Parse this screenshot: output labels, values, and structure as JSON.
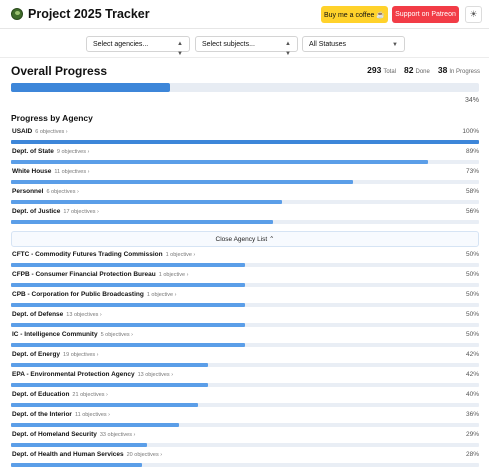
{
  "app": {
    "title": "Project 2025 Tracker",
    "coffee_button": "Buy me a coffee ☕",
    "patreon_button": "Support on Patreon",
    "theme_icon": "sun-icon"
  },
  "filters": {
    "agencies": "Select agencies...",
    "subjects": "Select subjects...",
    "statuses": "All Statuses"
  },
  "overall": {
    "heading": "Overall Progress",
    "total": "293",
    "total_label": "Total",
    "done": "82",
    "done_label": "Done",
    "in_progress": "38",
    "in_progress_label": "In Progress",
    "percent_label": "34%",
    "percent": 34
  },
  "agency_section": {
    "heading": "Progress by Agency",
    "close_label": "Close Agency List ⌃"
  },
  "colors": {
    "primary": "#3d86d9",
    "light": "#5b9ee8",
    "track": "#e9eef5"
  },
  "agencies": [
    {
      "name": "USAID",
      "objectives": "6 objectives ›",
      "percent_label": "100%",
      "percent": 100
    },
    {
      "name": "Dept. of State",
      "objectives": "9 objectives ›",
      "percent_label": "89%",
      "percent": 89
    },
    {
      "name": "White House",
      "objectives": "11 objectives ›",
      "percent_label": "73%",
      "percent": 73
    },
    {
      "name": "Personnel",
      "objectives": "6 objectives ›",
      "percent_label": "58%",
      "percent": 58
    },
    {
      "name": "Dept. of Justice",
      "objectives": "17 objectives ›",
      "percent_label": "56%",
      "percent": 56
    },
    {
      "name": "CFTC - Commodity Futures Trading Commission",
      "objectives": "1 objective ›",
      "percent_label": "50%",
      "percent": 50
    },
    {
      "name": "CFPB - Consumer Financial Protection Bureau",
      "objectives": "1 objective ›",
      "percent_label": "50%",
      "percent": 50
    },
    {
      "name": "CPB - Corporation for Public Broadcasting",
      "objectives": "1 objective ›",
      "percent_label": "50%",
      "percent": 50
    },
    {
      "name": "Dept. of Defense",
      "objectives": "13 objectives ›",
      "percent_label": "50%",
      "percent": 50
    },
    {
      "name": "IC - Intelligence Community",
      "objectives": "5 objectives ›",
      "percent_label": "50%",
      "percent": 50
    },
    {
      "name": "Dept. of Energy",
      "objectives": "19 objectives ›",
      "percent_label": "42%",
      "percent": 42
    },
    {
      "name": "EPA - Environmental Protection Agency",
      "objectives": "13 objectives ›",
      "percent_label": "42%",
      "percent": 42
    },
    {
      "name": "Dept. of Education",
      "objectives": "21 objectives ›",
      "percent_label": "40%",
      "percent": 40
    },
    {
      "name": "Dept. of the Interior",
      "objectives": "11 objectives ›",
      "percent_label": "36%",
      "percent": 36
    },
    {
      "name": "Dept. of Homeland Security",
      "objectives": "33 objectives ›",
      "percent_label": "29%",
      "percent": 29
    },
    {
      "name": "Dept. of Health and Human Services",
      "objectives": "20 objectives ›",
      "percent_label": "28%",
      "percent": 28
    }
  ]
}
